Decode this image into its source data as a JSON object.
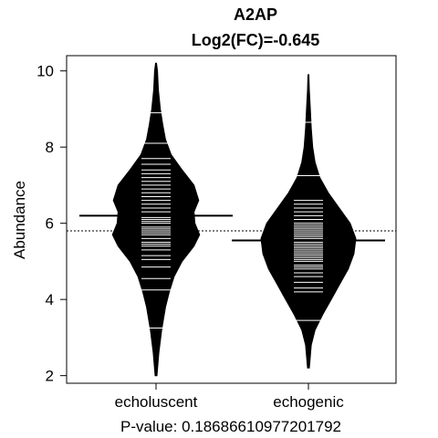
{
  "chart_data": {
    "type": "beanplot",
    "title": "A2AP",
    "subtitle": "Log2(FC)=-0.645",
    "xlabel": "P-value: 0.18686610977201792",
    "ylabel": "Abundance",
    "ylim": [
      1.8,
      10.4
    ],
    "yticks": [
      2,
      4,
      6,
      8,
      10
    ],
    "overall_mean": 5.8,
    "categories": [
      "echoluscent",
      "echogenic"
    ],
    "colors": {
      "bean": "#000000",
      "lines": "#ffffff",
      "background": "#ffffff"
    },
    "beans": [
      {
        "name": "echoluscent",
        "mean": 6.2,
        "density": [
          [
            2.0,
            0.02
          ],
          [
            2.6,
            0.06
          ],
          [
            3.2,
            0.12
          ],
          [
            3.8,
            0.2
          ],
          [
            4.2,
            0.28
          ],
          [
            4.6,
            0.38
          ],
          [
            5.0,
            0.55
          ],
          [
            5.4,
            0.8
          ],
          [
            5.7,
            0.92
          ],
          [
            6.0,
            0.82
          ],
          [
            6.3,
            0.8
          ],
          [
            6.6,
            0.9
          ],
          [
            7.0,
            0.8
          ],
          [
            7.4,
            0.55
          ],
          [
            7.8,
            0.32
          ],
          [
            8.2,
            0.2
          ],
          [
            8.6,
            0.14
          ],
          [
            9.0,
            0.09
          ],
          [
            9.5,
            0.05
          ],
          [
            10.0,
            0.03
          ],
          [
            10.2,
            0.01
          ]
        ],
        "points": [
          3.25,
          4.25,
          4.55,
          4.85,
          5.05,
          5.15,
          5.3,
          5.4,
          5.45,
          5.5,
          5.6,
          5.7,
          5.75,
          5.8,
          5.85,
          5.9,
          6.0,
          6.05,
          6.1,
          6.15,
          6.2,
          6.3,
          6.4,
          6.5,
          6.6,
          6.7,
          6.8,
          6.9,
          7.0,
          7.1,
          7.2,
          7.3,
          7.4,
          7.55,
          7.7,
          8.1,
          8.9
        ]
      },
      {
        "name": "echogenic",
        "mean": 5.55,
        "density": [
          [
            2.2,
            0.02
          ],
          [
            2.8,
            0.06
          ],
          [
            3.2,
            0.14
          ],
          [
            3.6,
            0.3
          ],
          [
            4.0,
            0.48
          ],
          [
            4.4,
            0.66
          ],
          [
            4.8,
            0.84
          ],
          [
            5.2,
            0.96
          ],
          [
            5.6,
            1.0
          ],
          [
            6.0,
            0.88
          ],
          [
            6.4,
            0.65
          ],
          [
            6.8,
            0.42
          ],
          [
            7.2,
            0.24
          ],
          [
            7.6,
            0.14
          ],
          [
            8.0,
            0.09
          ],
          [
            8.5,
            0.06
          ],
          [
            9.0,
            0.04
          ],
          [
            9.5,
            0.02
          ],
          [
            9.9,
            0.01
          ]
        ],
        "points": [
          3.45,
          4.2,
          4.3,
          4.45,
          4.6,
          4.7,
          4.8,
          4.85,
          4.9,
          5.0,
          5.05,
          5.1,
          5.15,
          5.2,
          5.25,
          5.3,
          5.35,
          5.4,
          5.45,
          5.5,
          5.55,
          5.6,
          5.65,
          5.7,
          5.75,
          5.8,
          5.85,
          5.9,
          5.95,
          6.0,
          6.1,
          6.2,
          6.3,
          6.4,
          6.5,
          6.6,
          7.25,
          8.65
        ]
      }
    ]
  }
}
